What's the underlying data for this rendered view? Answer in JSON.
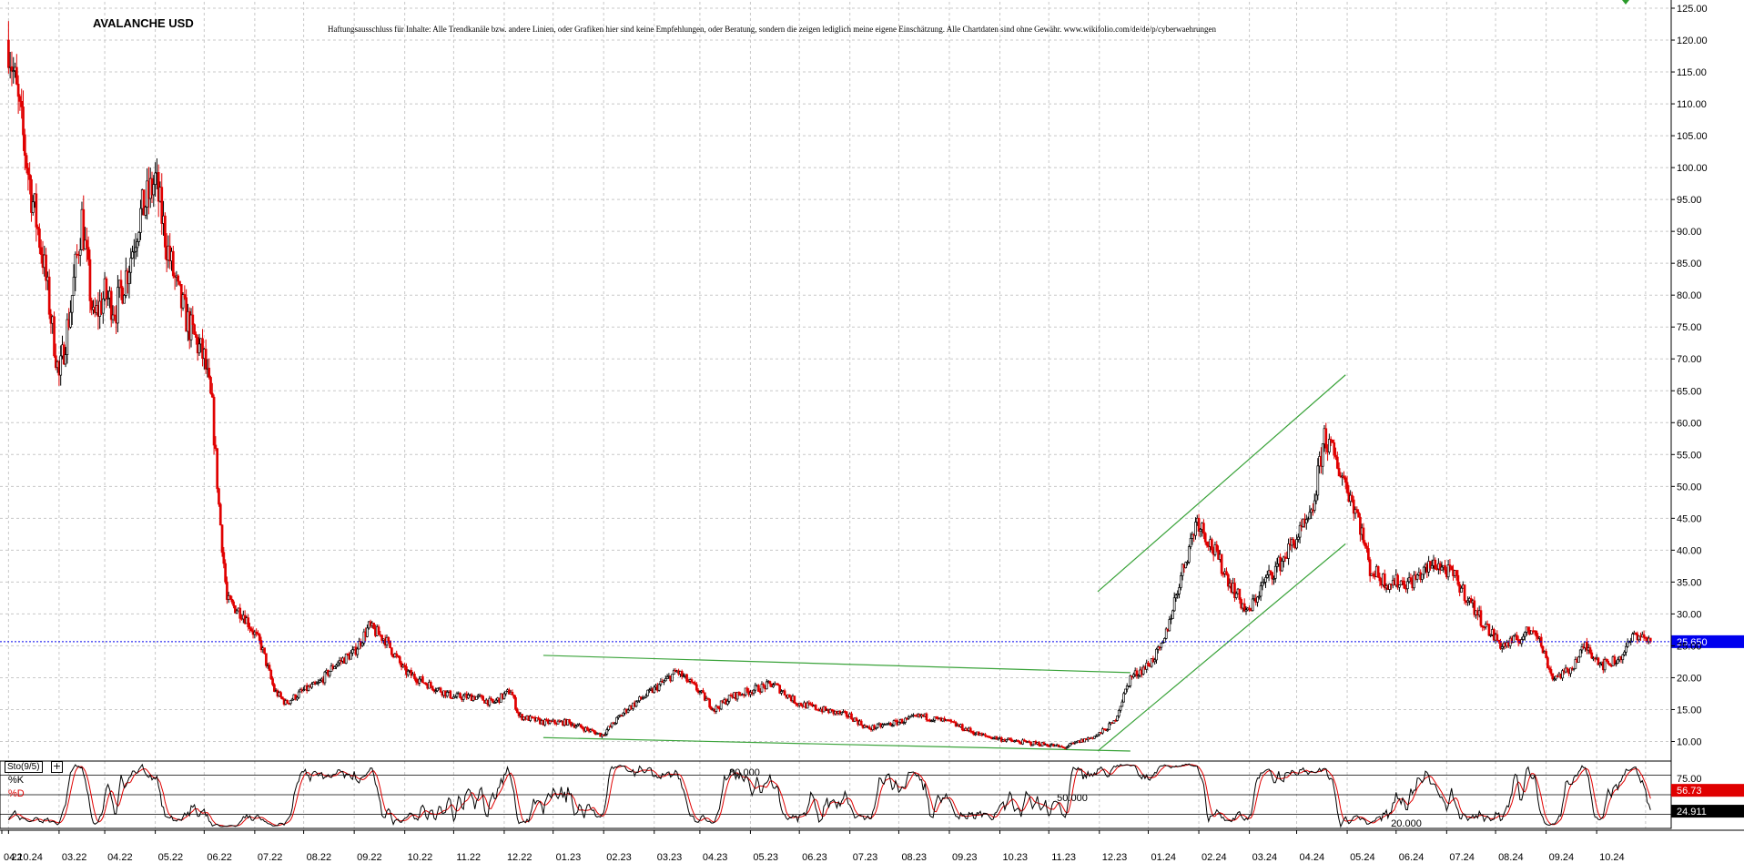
{
  "title": "AVALANCHE USD",
  "disclaimer": "Haftungsausschluss für Inhalte: Alle Trendkanäle bzw. andere Linien, oder Grafiken hier sind keine Empfehlungen, oder Beratung, sondern die zeigen lediglich meine eigene Einschätzung. Alle Chartdaten sind ohne Gewähr.  www.wikifolio.com/de/de/p/cyberwaehrungen",
  "colors": {
    "up": "#000000",
    "down": "#e00000",
    "trendline": "#3aa33a",
    "price_marker": "#0000ee",
    "k_line": "#000000",
    "d_line": "#e00000",
    "grid": "#c8c8c8"
  },
  "chart_data": [
    {
      "type": "candlestick",
      "title": "AVALANCHE USD",
      "y_axis_side": "right",
      "ylim": [
        7.5,
        126
      ],
      "y_ticks": [
        "125.00",
        "120.00",
        "115.00",
        "110.00",
        "105.00",
        "100.00",
        "95.00",
        "90.00",
        "85.00",
        "80.00",
        "75.00",
        "70.00",
        "65.00",
        "60.00",
        "55.00",
        "50.00",
        "45.00",
        "40.00",
        "35.00",
        "30.00",
        "25.00",
        "20.00",
        "15.00",
        "10.00"
      ],
      "x_tick_labels": [
        "04.10.24",
        "22",
        "03.22",
        "04.22",
        "05.22",
        "06.22",
        "07.22",
        "08.22",
        "09.22",
        "10.22",
        "11.22",
        "12.22",
        "01.23",
        "02.23",
        "03.23",
        "04.23",
        "05.23",
        "06.23",
        "07.23",
        "08.23",
        "09.23",
        "10.23",
        "11.23",
        "12.23",
        "01.24",
        "02.24",
        "03.24",
        "04.24",
        "05.24",
        "06.24",
        "07.24",
        "08.24",
        "09.24",
        "10.24"
      ],
      "grid": true,
      "last_price": "25.650",
      "anchors": [
        [
          "2022-01-01",
          120
        ],
        [
          "2022-01-08",
          108
        ],
        [
          "2022-01-15",
          96
        ],
        [
          "2022-01-22",
          86
        ],
        [
          "2022-02-01",
          67
        ],
        [
          "2022-02-08",
          78
        ],
        [
          "2022-02-15",
          92
        ],
        [
          "2022-02-22",
          76
        ],
        [
          "2022-03-01",
          80
        ],
        [
          "2022-03-08",
          78
        ],
        [
          "2022-03-15",
          84
        ],
        [
          "2022-03-22",
          92
        ],
        [
          "2022-04-01",
          98
        ],
        [
          "2022-04-08",
          88
        ],
        [
          "2022-04-15",
          80
        ],
        [
          "2022-04-22",
          75
        ],
        [
          "2022-05-01",
          70
        ],
        [
          "2022-05-06",
          62
        ],
        [
          "2022-05-10",
          47
        ],
        [
          "2022-05-15",
          32
        ],
        [
          "2022-05-25",
          30
        ],
        [
          "2022-06-05",
          25
        ],
        [
          "2022-06-13",
          18
        ],
        [
          "2022-06-20",
          16
        ],
        [
          "2022-07-01",
          18
        ],
        [
          "2022-07-10",
          19
        ],
        [
          "2022-07-20",
          22
        ],
        [
          "2022-08-01",
          24
        ],
        [
          "2022-08-10",
          28
        ],
        [
          "2022-08-20",
          26
        ],
        [
          "2022-09-01",
          21
        ],
        [
          "2022-09-15",
          19
        ],
        [
          "2022-10-01",
          17
        ],
        [
          "2022-10-15",
          17
        ],
        [
          "2022-10-25",
          16
        ],
        [
          "2022-11-05",
          18
        ],
        [
          "2022-11-10",
          14
        ],
        [
          "2022-11-25",
          13
        ],
        [
          "2022-12-10",
          13
        ],
        [
          "2022-12-31",
          11
        ],
        [
          "2023-01-15",
          15
        ],
        [
          "2023-01-31",
          18
        ],
        [
          "2023-02-15",
          21
        ],
        [
          "2023-02-28",
          18
        ],
        [
          "2023-03-10",
          15
        ],
        [
          "2023-03-20",
          17
        ],
        [
          "2023-04-01",
          18
        ],
        [
          "2023-04-15",
          19
        ],
        [
          "2023-04-30",
          16
        ],
        [
          "2023-05-15",
          15
        ],
        [
          "2023-06-01",
          14
        ],
        [
          "2023-06-12",
          12
        ],
        [
          "2023-06-30",
          13
        ],
        [
          "2023-07-15",
          14
        ],
        [
          "2023-08-01",
          13
        ],
        [
          "2023-08-20",
          11
        ],
        [
          "2023-09-10",
          10
        ],
        [
          "2023-10-01",
          9.5
        ],
        [
          "2023-10-10",
          9
        ],
        [
          "2023-10-20",
          10
        ],
        [
          "2023-10-31",
          11
        ],
        [
          "2023-11-10",
          13
        ],
        [
          "2023-11-20",
          20
        ],
        [
          "2023-12-01",
          22
        ],
        [
          "2023-12-10",
          25
        ],
        [
          "2023-12-20",
          35
        ],
        [
          "2023-12-31",
          45
        ],
        [
          "2024-01-10",
          40
        ],
        [
          "2024-01-20",
          35
        ],
        [
          "2024-01-31",
          30
        ],
        [
          "2024-02-10",
          35
        ],
        [
          "2024-02-20",
          38
        ],
        [
          "2024-03-01",
          42
        ],
        [
          "2024-03-10",
          45
        ],
        [
          "2024-03-18",
          58
        ],
        [
          "2024-03-25",
          54
        ],
        [
          "2024-04-01",
          50
        ],
        [
          "2024-04-08",
          45
        ],
        [
          "2024-04-15",
          37
        ],
        [
          "2024-04-25",
          35
        ],
        [
          "2024-05-10",
          35
        ],
        [
          "2024-05-25",
          38
        ],
        [
          "2024-06-05",
          36
        ],
        [
          "2024-06-15",
          32
        ],
        [
          "2024-06-25",
          28
        ],
        [
          "2024-07-05",
          25
        ],
        [
          "2024-07-15",
          26
        ],
        [
          "2024-07-25",
          28
        ],
        [
          "2024-08-05",
          20
        ],
        [
          "2024-08-15",
          21
        ],
        [
          "2024-08-25",
          25
        ],
        [
          "2024-09-05",
          22
        ],
        [
          "2024-09-15",
          23
        ],
        [
          "2024-09-25",
          27
        ],
        [
          "2024-10-04",
          25.65
        ]
      ],
      "trendlines": [
        {
          "from": [
            "2022-11-25",
            23.5
          ],
          "to": [
            "2023-11-20",
            20.8
          ]
        },
        {
          "from": [
            "2022-11-25",
            10.6
          ],
          "to": [
            "2023-11-20",
            8.5
          ]
        },
        {
          "from": [
            "2023-10-31",
            33.5
          ],
          "to": [
            "2024-03-31",
            67.5
          ]
        },
        {
          "from": [
            "2023-10-31",
            8.5
          ],
          "to": [
            "2024-03-31",
            41
          ]
        }
      ]
    },
    {
      "type": "line",
      "title": "Sto(9/5)",
      "series": [
        {
          "name": "%K"
        },
        {
          "name": "%D"
        }
      ],
      "ylim": [
        0,
        100
      ],
      "y_ticks": [
        "75.00"
      ],
      "levels": [
        {
          "value": 80,
          "label": "80.000"
        },
        {
          "value": 50,
          "label": "50.000"
        },
        {
          "value": 20,
          "label": "20.000"
        }
      ],
      "last_values": {
        "d": "56.73",
        "k": "24.911"
      }
    }
  ]
}
